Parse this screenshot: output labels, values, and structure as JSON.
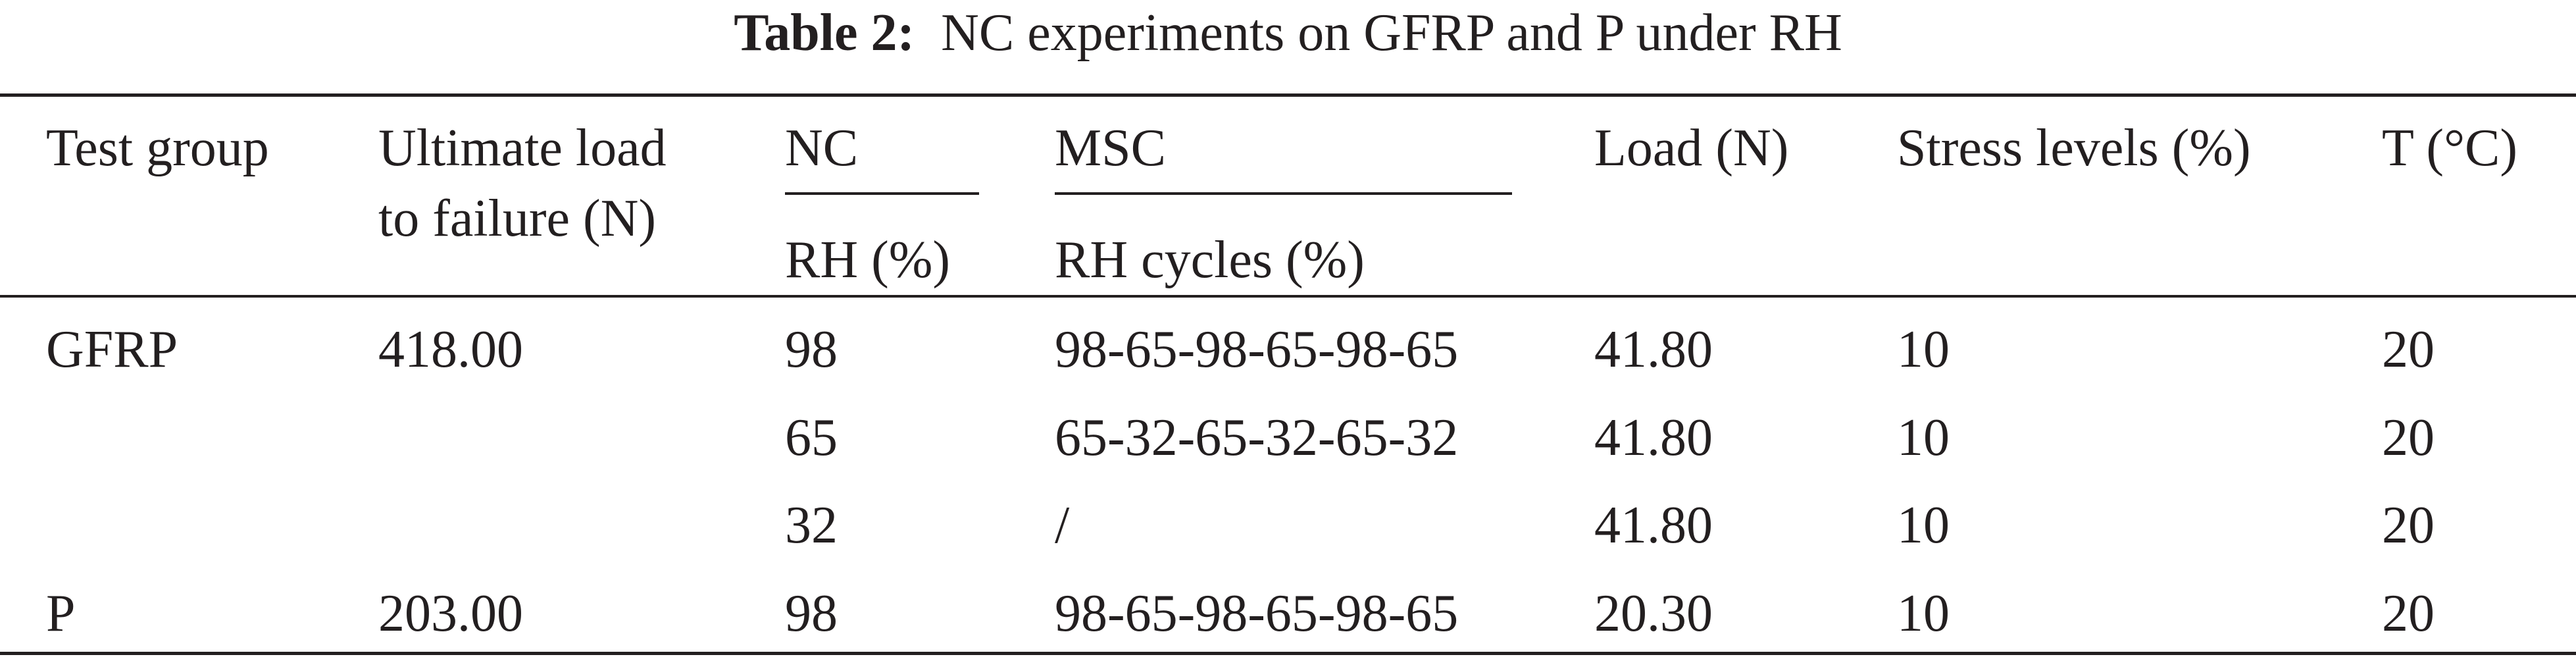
{
  "caption": {
    "label": "Table 2:",
    "text": "NC experiments on GFRP and P under RH"
  },
  "table": {
    "headers": {
      "test_group": "Test group",
      "ultimate_load_line1": "Ultimate load",
      "ultimate_load_line2": "to failure (N)",
      "nc": "NC",
      "nc_sub": "RH (%)",
      "msc": "MSC",
      "msc_sub": "RH cycles (%)",
      "load": "Load (N)",
      "stress_levels": "Stress levels (%)",
      "temperature": "T (°C)"
    },
    "rows": [
      [
        "GFRP",
        "418.00",
        "98",
        "98-65-98-65-98-65",
        "41.80",
        "10",
        "20"
      ],
      [
        "",
        "",
        "65",
        "65-32-65-32-65-32",
        "41.80",
        "10",
        "20"
      ],
      [
        "",
        "",
        "32",
        "/",
        "41.80",
        "10",
        "20"
      ],
      [
        "P",
        "203.00",
        "98",
        "98-65-98-65-98-65",
        "20.30",
        "10",
        "20"
      ]
    ]
  }
}
